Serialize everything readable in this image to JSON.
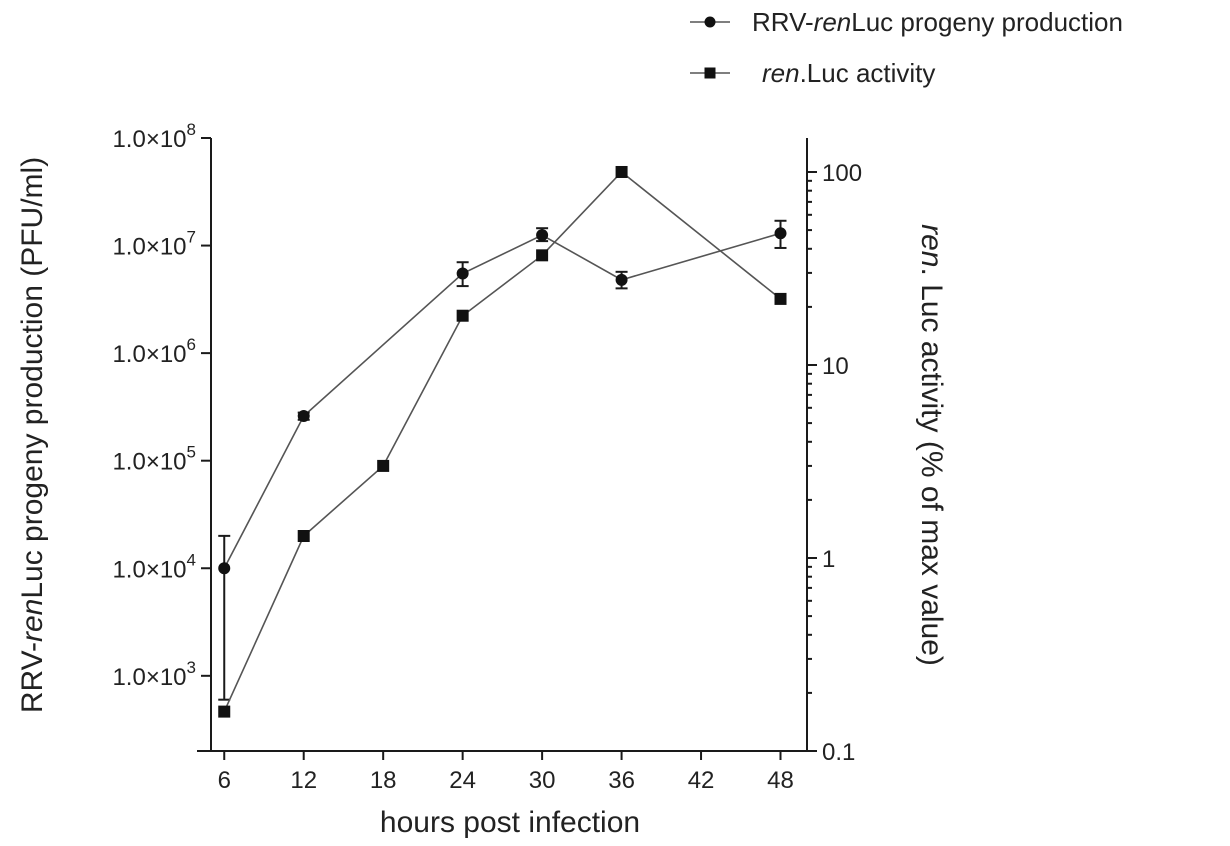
{
  "chart_data": {
    "type": "line",
    "x_axis": {
      "label": "hours post infection",
      "range": [
        5,
        50
      ],
      "ticks": [
        6,
        12,
        18,
        24,
        30,
        36,
        42,
        48
      ]
    },
    "y_axis_left": {
      "label_parts": [
        "RRV-",
        "ren",
        "Luc progeny production (PFU/ml)"
      ],
      "scale": "log",
      "range": [
        200,
        100000000
      ],
      "ticks": [
        {
          "value": 1000,
          "label_mant": "1.0×10",
          "label_exp": "3"
        },
        {
          "value": 10000,
          "label_mant": "1.0×10",
          "label_exp": "4"
        },
        {
          "value": 100000,
          "label_mant": "1.0×10",
          "label_exp": "5"
        },
        {
          "value": 1000000,
          "label_mant": "1.0×10",
          "label_exp": "6"
        },
        {
          "value": 10000000,
          "label_mant": "1.0×10",
          "label_exp": "7"
        },
        {
          "value": 100000000,
          "label_mant": "1.0×10",
          "label_exp": "8"
        }
      ]
    },
    "y_axis_right": {
      "label_parts": [
        "ren",
        ". Luc activity (% of max value)"
      ],
      "scale": "log",
      "range": [
        0.1,
        150
      ],
      "ticks": [
        {
          "value": 0.1,
          "label": "0.1"
        },
        {
          "value": 1,
          "label": "1"
        },
        {
          "value": 10,
          "label": "10"
        },
        {
          "value": 100,
          "label": "100"
        }
      ]
    },
    "series": [
      {
        "name_parts": [
          "RRV-",
          "ren",
          "Luc progeny production"
        ],
        "axis": "left",
        "marker": "circle",
        "x": [
          6,
          12,
          24,
          30,
          36,
          48
        ],
        "y": [
          10000,
          260000,
          5500000,
          12500000,
          4800000,
          13000000
        ],
        "err_low": [
          600,
          240000,
          4200000,
          11000000,
          4000000,
          9500000
        ],
        "err_high": [
          20000,
          280000,
          7000000,
          14500000,
          5700000,
          17000000
        ]
      },
      {
        "name_parts": [
          "ren",
          ".Luc activity"
        ],
        "axis": "right",
        "marker": "square",
        "x": [
          6,
          12,
          18,
          24,
          30,
          36,
          48
        ],
        "y": [
          0.16,
          1.3,
          3.0,
          18,
          37,
          100,
          22
        ]
      }
    ],
    "legend_position": "top-right",
    "grid": false,
    "colors": {
      "markers": "#111111",
      "lines": "#555555"
    }
  }
}
